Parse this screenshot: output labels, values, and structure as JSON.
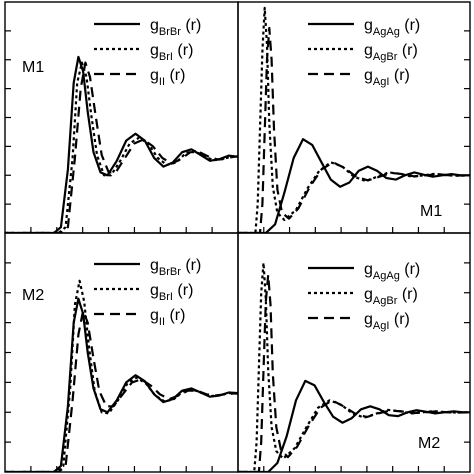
{
  "chart_data": [
    {
      "panel_label": "M1",
      "type": "line",
      "xlim": [
        0,
        10
      ],
      "ylim": [
        0,
        4
      ],
      "grid": false,
      "legend_position": "top-right",
      "series": [
        {
          "name": "g_BrBr (r)",
          "base": "g",
          "sub": "BrBr",
          "tail": " (r)",
          "style": "solid",
          "x": [
            0,
            2.1,
            2.4,
            2.7,
            2.95,
            3.15,
            3.35,
            3.55,
            3.8,
            4.1,
            4.4,
            4.8,
            5.2,
            5.6,
            6.0,
            6.4,
            6.8,
            7.2,
            7.6,
            8.0,
            8.4,
            8.8,
            9.2,
            9.6,
            10.0
          ],
          "y": [
            0,
            0,
            0.1,
            1.1,
            2.6,
            3.05,
            2.8,
            2.1,
            1.4,
            1.05,
            1.0,
            1.25,
            1.6,
            1.72,
            1.6,
            1.3,
            1.15,
            1.22,
            1.4,
            1.45,
            1.35,
            1.25,
            1.28,
            1.34,
            1.32
          ]
        },
        {
          "name": "g_BrI (r)",
          "base": "g",
          "sub": "BrI",
          "tail": " (r)",
          "style": "dotted",
          "x": [
            0,
            2.3,
            2.6,
            2.9,
            3.1,
            3.3,
            3.5,
            3.7,
            3.95,
            4.25,
            4.55,
            4.95,
            5.35,
            5.75,
            6.15,
            6.55,
            6.95,
            7.35,
            7.75,
            8.15,
            8.55,
            8.95,
            9.35,
            9.75,
            10.0
          ],
          "y": [
            0,
            0,
            0.1,
            1.3,
            2.6,
            2.95,
            2.7,
            2.05,
            1.35,
            1.0,
            1.0,
            1.25,
            1.55,
            1.65,
            1.55,
            1.3,
            1.18,
            1.22,
            1.38,
            1.42,
            1.33,
            1.26,
            1.28,
            1.33,
            1.32
          ]
        },
        {
          "name": "g_II (r)",
          "base": "g",
          "sub": "II",
          "tail": " (r)",
          "style": "dashed",
          "x": [
            0,
            2.4,
            2.7,
            3.0,
            3.25,
            3.45,
            3.65,
            3.9,
            4.15,
            4.45,
            4.75,
            5.15,
            5.55,
            5.95,
            6.35,
            6.75,
            7.15,
            7.55,
            7.95,
            8.35,
            8.75,
            9.15,
            9.55,
            10.0
          ],
          "y": [
            0,
            0,
            0.1,
            1.3,
            2.5,
            2.95,
            2.7,
            2.0,
            1.35,
            1.05,
            1.05,
            1.3,
            1.55,
            1.62,
            1.5,
            1.3,
            1.2,
            1.28,
            1.4,
            1.4,
            1.32,
            1.27,
            1.3,
            1.33
          ]
        }
      ]
    },
    {
      "panel_label": "M1",
      "type": "line",
      "xlim": [
        0,
        10
      ],
      "ylim": [
        0,
        8
      ],
      "grid": false,
      "legend_position": "top-right",
      "series": [
        {
          "name": "g_AgAg (r)",
          "base": "g",
          "sub": "AgAg",
          "tail": " (r)",
          "style": "solid",
          "x": [
            0,
            1.2,
            1.6,
            2.0,
            2.4,
            2.8,
            3.2,
            3.6,
            4.0,
            4.4,
            4.8,
            5.2,
            5.6,
            6.0,
            6.4,
            6.8,
            7.2,
            7.6,
            8.0,
            8.4,
            8.8,
            9.2,
            9.6,
            10.0
          ],
          "y": [
            0,
            0,
            0.3,
            1.4,
            2.6,
            3.25,
            3.05,
            2.45,
            1.85,
            1.6,
            1.75,
            2.15,
            2.3,
            2.15,
            1.9,
            1.85,
            2.0,
            2.1,
            2.02,
            1.95,
            2.0,
            2.04,
            2.0,
            2.0
          ]
        },
        {
          "name": "g_AgBr (r)",
          "base": "g",
          "sub": "AgBr",
          "tail": " (r)",
          "style": "dotted",
          "x": [
            0,
            0.75,
            0.85,
            0.95,
            1.05,
            1.15,
            1.25,
            1.35,
            1.5,
            1.7,
            2.0,
            2.5,
            3.0,
            3.5,
            4.0,
            4.5,
            5.0,
            5.5,
            6.0,
            6.5,
            7.0,
            7.5,
            8.0,
            8.5,
            9.0,
            9.5,
            10.0
          ],
          "y": [
            0,
            0,
            1.0,
            3.6,
            6.3,
            7.8,
            6.5,
            3.8,
            1.6,
            0.7,
            0.45,
            0.8,
            1.55,
            2.15,
            2.45,
            2.3,
            1.95,
            1.8,
            1.95,
            2.1,
            2.05,
            1.95,
            2.0,
            2.05,
            2.0,
            1.98,
            2.0
          ]
        },
        {
          "name": "g_AgI (r)",
          "base": "g",
          "sub": "AgI",
          "tail": " (r)",
          "style": "dashed",
          "x": [
            0,
            0.95,
            1.05,
            1.15,
            1.25,
            1.35,
            1.45,
            1.55,
            1.7,
            1.9,
            2.2,
            2.6,
            3.1,
            3.6,
            4.1,
            4.6,
            5.1,
            5.6,
            6.1,
            6.6,
            7.1,
            7.6,
            8.1,
            8.6,
            9.1,
            9.6,
            10.0
          ],
          "y": [
            0,
            0,
            1.0,
            3.5,
            6.0,
            7.1,
            6.0,
            3.6,
            1.5,
            0.7,
            0.5,
            0.85,
            1.6,
            2.2,
            2.45,
            2.25,
            1.95,
            1.82,
            1.95,
            2.08,
            2.04,
            1.96,
            2.0,
            2.04,
            2.0,
            1.99,
            2.0
          ]
        }
      ]
    },
    {
      "panel_label": "M2",
      "type": "line",
      "xlim": [
        0,
        10
      ],
      "ylim": [
        0,
        4
      ],
      "grid": false,
      "legend_position": "top-right",
      "series": [
        {
          "name": "g_BrBr (r)",
          "base": "g",
          "sub": "BrBr",
          "tail": " (r)",
          "style": "solid",
          "x": [
            0,
            2.1,
            2.4,
            2.7,
            2.95,
            3.15,
            3.35,
            3.55,
            3.8,
            4.1,
            4.4,
            4.8,
            5.2,
            5.6,
            6.0,
            6.4,
            6.8,
            7.2,
            7.6,
            8.0,
            8.4,
            8.8,
            9.2,
            9.6,
            10.0
          ],
          "y": [
            0,
            0,
            0.1,
            1.1,
            2.5,
            2.9,
            2.65,
            2.0,
            1.4,
            1.05,
            1.0,
            1.2,
            1.5,
            1.62,
            1.52,
            1.3,
            1.17,
            1.22,
            1.36,
            1.4,
            1.33,
            1.26,
            1.28,
            1.33,
            1.32
          ]
        },
        {
          "name": "g_BrI (r)",
          "base": "g",
          "sub": "BrI",
          "tail": " (r)",
          "style": "dotted",
          "x": [
            0,
            2.2,
            2.5,
            2.8,
            3.0,
            3.2,
            3.4,
            3.6,
            3.85,
            4.15,
            4.45,
            4.85,
            5.25,
            5.65,
            6.05,
            6.45,
            6.85,
            7.25,
            7.65,
            8.05,
            8.45,
            8.85,
            9.25,
            9.65,
            10.0
          ],
          "y": [
            0,
            0,
            0.1,
            1.4,
            2.8,
            3.2,
            2.85,
            2.1,
            1.35,
            1.0,
            0.98,
            1.2,
            1.48,
            1.58,
            1.48,
            1.28,
            1.18,
            1.22,
            1.35,
            1.38,
            1.32,
            1.27,
            1.29,
            1.32,
            1.31
          ]
        },
        {
          "name": "g_II (r)",
          "base": "g",
          "sub": "II",
          "tail": " (r)",
          "style": "dashed",
          "x": [
            0,
            2.3,
            2.6,
            2.9,
            3.15,
            3.35,
            3.55,
            3.8,
            4.05,
            4.35,
            4.65,
            5.05,
            5.45,
            5.85,
            6.25,
            6.65,
            7.05,
            7.45,
            7.85,
            8.25,
            8.65,
            9.05,
            9.45,
            10.0
          ],
          "y": [
            0,
            0,
            0.1,
            1.2,
            2.3,
            2.7,
            2.5,
            1.9,
            1.35,
            1.1,
            1.1,
            1.3,
            1.5,
            1.55,
            1.45,
            1.3,
            1.22,
            1.28,
            1.36,
            1.36,
            1.3,
            1.28,
            1.3,
            1.32
          ]
        }
      ]
    },
    {
      "panel_label": "M2",
      "type": "line",
      "xlim": [
        0,
        10
      ],
      "ylim": [
        0,
        8
      ],
      "grid": false,
      "legend_position": "top-right",
      "series": [
        {
          "name": "g_AgAg (r)",
          "base": "g",
          "sub": "AgAg",
          "tail": " (r)",
          "style": "solid",
          "x": [
            0,
            1.3,
            1.7,
            2.1,
            2.5,
            2.9,
            3.3,
            3.7,
            4.1,
            4.5,
            4.9,
            5.3,
            5.7,
            6.1,
            6.5,
            6.9,
            7.3,
            7.7,
            8.1,
            8.5,
            8.9,
            9.3,
            9.7,
            10.0
          ],
          "y": [
            0,
            0,
            0.3,
            1.2,
            2.4,
            3.05,
            2.9,
            2.35,
            1.85,
            1.65,
            1.8,
            2.1,
            2.2,
            2.1,
            1.9,
            1.87,
            2.0,
            2.07,
            2.02,
            1.96,
            2.0,
            2.03,
            2.0,
            2.0
          ]
        },
        {
          "name": "g_AgBr (r)",
          "base": "g",
          "sub": "AgBr",
          "tail": " (r)",
          "style": "dotted",
          "x": [
            0,
            0.7,
            0.8,
            0.9,
            1.0,
            1.1,
            1.2,
            1.3,
            1.45,
            1.65,
            1.95,
            2.45,
            2.95,
            3.45,
            3.95,
            4.45,
            4.95,
            5.45,
            5.95,
            6.45,
            6.95,
            7.45,
            7.95,
            8.45,
            8.95,
            9.45,
            10.0
          ],
          "y": [
            0,
            0,
            1.0,
            3.5,
            6.0,
            7.0,
            5.8,
            3.4,
            1.5,
            0.7,
            0.45,
            0.8,
            1.5,
            2.15,
            2.4,
            2.25,
            1.95,
            1.82,
            1.95,
            2.08,
            2.04,
            1.96,
            2.0,
            2.04,
            2.0,
            1.99,
            2.0
          ]
        },
        {
          "name": "g_AgI (r)",
          "base": "g",
          "sub": "AgI",
          "tail": " (r)",
          "style": "dashed",
          "x": [
            0,
            0.9,
            1.0,
            1.1,
            1.2,
            1.3,
            1.4,
            1.5,
            1.65,
            1.85,
            2.15,
            2.55,
            3.05,
            3.55,
            4.05,
            4.55,
            5.05,
            5.55,
            6.05,
            6.55,
            7.05,
            7.55,
            8.05,
            8.55,
            9.05,
            9.55,
            10.0
          ],
          "y": [
            0,
            0,
            1.0,
            3.4,
            5.7,
            6.6,
            5.6,
            3.3,
            1.5,
            0.75,
            0.5,
            0.85,
            1.55,
            2.15,
            2.4,
            2.2,
            1.95,
            1.84,
            1.96,
            2.06,
            2.03,
            1.97,
            2.0,
            2.03,
            2.0,
            1.99,
            2.0
          ]
        }
      ]
    }
  ]
}
